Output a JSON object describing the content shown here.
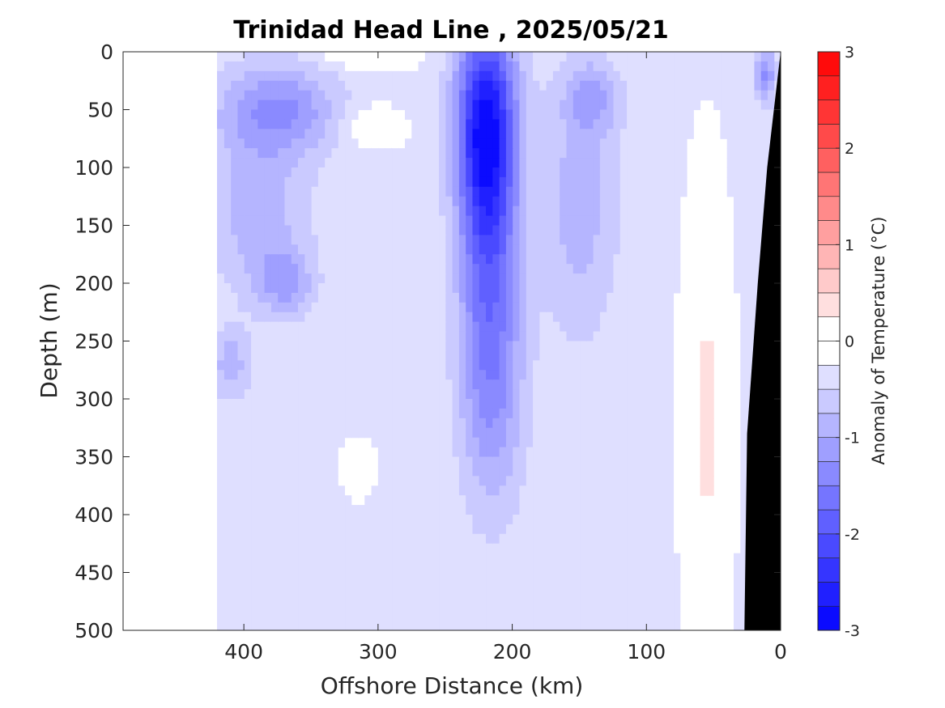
{
  "chart_data": {
    "type": "heatmap",
    "title": "Trinidad Head Line , 2025/05/21",
    "xlabel": "Offshore Distance (km)",
    "ylabel": "Depth (m)",
    "xlim": [
      490,
      0
    ],
    "ylim": [
      0,
      500
    ],
    "x_ticks": [
      400,
      300,
      200,
      100,
      0
    ],
    "y_ticks": [
      0,
      50,
      100,
      150,
      200,
      250,
      300,
      350,
      400,
      450,
      500
    ],
    "colorbar": {
      "label": "Anomaly of Temperature (°C)",
      "range": [
        -3,
        3
      ],
      "ticks": [
        3,
        2,
        1,
        0,
        -1,
        -2,
        -3
      ],
      "levels": [
        -3,
        -2.75,
        -2.5,
        -2.25,
        -2,
        -1.75,
        -1.5,
        -1.25,
        -1,
        -0.75,
        -0.5,
        -0.25,
        0,
        0.25,
        0.5,
        0.75,
        1,
        1.25,
        1.5,
        1.75,
        2,
        2.25,
        2.5,
        2.75,
        3
      ],
      "cold_color": "#0000ff",
      "warm_color": "#ff0000",
      "neutral_color": "#ffffff"
    },
    "data_extent_km": 420,
    "zero_contour_color": "#000000",
    "bathymetry": {
      "color": "#000000",
      "points": [
        [
          0,
          0
        ],
        [
          3,
          30
        ],
        [
          10,
          100
        ],
        [
          17,
          200
        ],
        [
          25,
          330
        ],
        [
          27,
          500
        ],
        [
          0,
          500
        ]
      ]
    },
    "anomaly_features": [
      {
        "kind": "min",
        "x": 220,
        "depth": 60,
        "value": -2.2,
        "sx": 22,
        "sz": 90
      },
      {
        "kind": "min",
        "x": 218,
        "depth": 170,
        "value": -1.2,
        "sx": 22,
        "sz": 130
      },
      {
        "kind": "min",
        "x": 215,
        "depth": 300,
        "value": -0.7,
        "sx": 25,
        "sz": 110
      },
      {
        "kind": "min",
        "x": 375,
        "depth": 50,
        "value": -1.0,
        "sx": 45,
        "sz": 40
      },
      {
        "kind": "min",
        "x": 390,
        "depth": 140,
        "value": -0.6,
        "sx": 40,
        "sz": 70
      },
      {
        "kind": "min",
        "x": 370,
        "depth": 200,
        "value": -0.7,
        "sx": 22,
        "sz": 30
      },
      {
        "kind": "min",
        "x": 150,
        "depth": 130,
        "value": -0.6,
        "sx": 30,
        "sz": 120
      },
      {
        "kind": "min",
        "x": 140,
        "depth": 40,
        "value": -0.6,
        "sx": 20,
        "sz": 30
      },
      {
        "kind": "min",
        "x": 12,
        "depth": 20,
        "value": -1.0,
        "sx": 8,
        "sz": 25
      },
      {
        "kind": "min",
        "x": 410,
        "depth": 270,
        "value": -0.6,
        "sx": 15,
        "sz": 30
      },
      {
        "kind": "max",
        "x": 55,
        "depth": 320,
        "value": 0.65,
        "sx": 14,
        "sz": 160
      },
      {
        "kind": "max",
        "x": 305,
        "depth": 65,
        "value": 0.55,
        "sx": 18,
        "sz": 15
      },
      {
        "kind": "max",
        "x": 310,
        "depth": 5,
        "value": 0.35,
        "sx": 35,
        "sz": 10
      },
      {
        "kind": "max",
        "x": 315,
        "depth": 360,
        "value": 0.4,
        "sx": 10,
        "sz": 18
      }
    ],
    "grid": false
  }
}
